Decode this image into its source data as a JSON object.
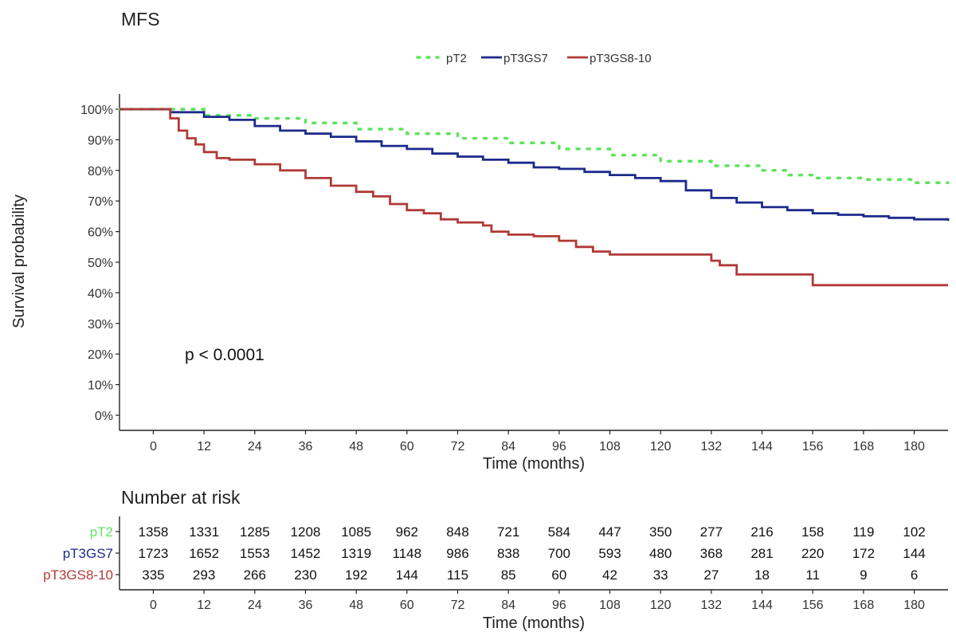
{
  "chart_data": [
    {
      "type": "line",
      "title": "MFS",
      "xlabel": "Time (months)",
      "ylabel": "Survival probability",
      "xlim": [
        -8,
        188
      ],
      "ylim": [
        0,
        1
      ],
      "x_ticks": [
        0,
        12,
        24,
        36,
        48,
        60,
        72,
        84,
        96,
        108,
        120,
        132,
        144,
        156,
        168,
        180
      ],
      "y_ticks": [
        "0%",
        "10%",
        "20%",
        "30%",
        "40%",
        "50%",
        "60%",
        "70%",
        "80%",
        "90%",
        "100%"
      ],
      "grid": false,
      "legend_position": "top",
      "annotation": "p < 0.0001",
      "series": [
        {
          "name": "pT2",
          "color": "#5fe35f",
          "style": "dotted",
          "points": [
            [
              -8,
              1.0
            ],
            [
              1,
              1.0
            ],
            [
              12,
              0.98
            ],
            [
              24,
              0.97
            ],
            [
              36,
              0.955
            ],
            [
              48,
              0.935
            ],
            [
              60,
              0.92
            ],
            [
              72,
              0.905
            ],
            [
              84,
              0.89
            ],
            [
              96,
              0.87
            ],
            [
              108,
              0.85
            ],
            [
              120,
              0.83
            ],
            [
              132,
              0.815
            ],
            [
              144,
              0.8
            ],
            [
              150,
              0.785
            ],
            [
              156,
              0.775
            ],
            [
              168,
              0.77
            ],
            [
              180,
              0.76
            ],
            [
              188,
              0.76
            ]
          ]
        },
        {
          "name": "pT3GS7",
          "color": "#1c2a8c",
          "style": "solid",
          "points": [
            [
              -8,
              1.0
            ],
            [
              0,
              1.0
            ],
            [
              4,
              0.99
            ],
            [
              12,
              0.975
            ],
            [
              18,
              0.965
            ],
            [
              24,
              0.945
            ],
            [
              30,
              0.93
            ],
            [
              36,
              0.92
            ],
            [
              42,
              0.91
            ],
            [
              48,
              0.895
            ],
            [
              54,
              0.88
            ],
            [
              60,
              0.87
            ],
            [
              66,
              0.855
            ],
            [
              72,
              0.845
            ],
            [
              78,
              0.835
            ],
            [
              84,
              0.825
            ],
            [
              90,
              0.81
            ],
            [
              96,
              0.805
            ],
            [
              102,
              0.795
            ],
            [
              108,
              0.785
            ],
            [
              114,
              0.775
            ],
            [
              120,
              0.765
            ],
            [
              126,
              0.735
            ],
            [
              132,
              0.71
            ],
            [
              138,
              0.695
            ],
            [
              144,
              0.68
            ],
            [
              150,
              0.67
            ],
            [
              156,
              0.66
            ],
            [
              162,
              0.655
            ],
            [
              168,
              0.65
            ],
            [
              174,
              0.645
            ],
            [
              180,
              0.64
            ],
            [
              188,
              0.635
            ]
          ]
        },
        {
          "name": "pT3GS8-10",
          "color": "#b03a37",
          "style": "solid",
          "points": [
            [
              -8,
              1.0
            ],
            [
              2,
              1.0
            ],
            [
              4,
              0.97
            ],
            [
              6,
              0.93
            ],
            [
              8,
              0.905
            ],
            [
              10,
              0.885
            ],
            [
              12,
              0.86
            ],
            [
              15,
              0.84
            ],
            [
              18,
              0.835
            ],
            [
              24,
              0.82
            ],
            [
              30,
              0.8
            ],
            [
              36,
              0.775
            ],
            [
              42,
              0.75
            ],
            [
              48,
              0.73
            ],
            [
              52,
              0.715
            ],
            [
              56,
              0.69
            ],
            [
              60,
              0.67
            ],
            [
              64,
              0.66
            ],
            [
              68,
              0.64
            ],
            [
              72,
              0.63
            ],
            [
              78,
              0.62
            ],
            [
              80,
              0.6
            ],
            [
              84,
              0.59
            ],
            [
              90,
              0.585
            ],
            [
              96,
              0.57
            ],
            [
              100,
              0.55
            ],
            [
              104,
              0.535
            ],
            [
              108,
              0.525
            ],
            [
              130,
              0.525
            ],
            [
              132,
              0.505
            ],
            [
              134,
              0.49
            ],
            [
              138,
              0.46
            ],
            [
              148,
              0.46
            ],
            [
              155,
              0.46
            ],
            [
              156,
              0.425
            ],
            [
              188,
              0.425
            ]
          ]
        }
      ]
    },
    {
      "type": "table",
      "title": "Number at risk",
      "xlabel": "Time (months)",
      "columns": [
        0,
        12,
        24,
        36,
        48,
        60,
        72,
        84,
        96,
        108,
        120,
        132,
        144,
        156,
        168,
        180
      ],
      "rows": [
        {
          "name": "pT2",
          "color": "#5fe35f",
          "values": [
            1358,
            1331,
            1285,
            1208,
            1085,
            962,
            848,
            721,
            584,
            447,
            350,
            277,
            216,
            158,
            119,
            102
          ]
        },
        {
          "name": "pT3GS7",
          "color": "#1c2a8c",
          "values": [
            1723,
            1652,
            1553,
            1452,
            1319,
            1148,
            986,
            838,
            700,
            593,
            480,
            368,
            281,
            220,
            172,
            144
          ]
        },
        {
          "name": "pT3GS8-10",
          "color": "#b03a37",
          "values": [
            335,
            293,
            266,
            230,
            192,
            144,
            115,
            85,
            60,
            42,
            33,
            27,
            18,
            11,
            9,
            6
          ]
        }
      ]
    }
  ]
}
